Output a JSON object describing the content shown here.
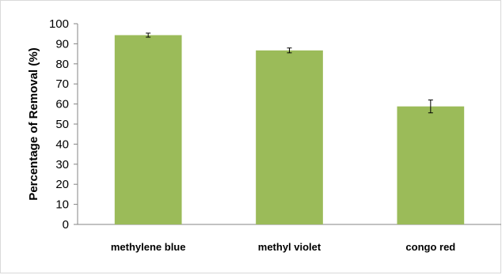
{
  "chart_data": {
    "type": "bar",
    "categories": [
      "methylene blue",
      "methyl violet",
      "congo red"
    ],
    "values": [
      94.3,
      86.7,
      58.8
    ],
    "error": [
      1.0,
      1.2,
      3.2
    ],
    "ylabel": "Percentage of Removal (%)",
    "ylim": [
      0,
      100
    ],
    "ytick_step": 10,
    "yticks": [
      "0",
      "10",
      "20",
      "30",
      "40",
      "50",
      "60",
      "70",
      "80",
      "90",
      "100"
    ],
    "grid": false,
    "legend": "none",
    "bar_color": "#9BBB59"
  }
}
